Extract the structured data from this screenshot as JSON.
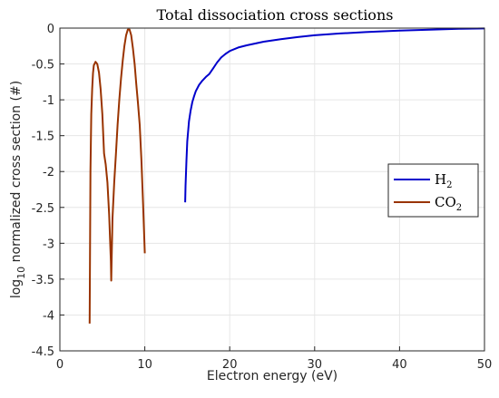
{
  "chart_data": {
    "type": "line",
    "title": "Total dissociation cross sections",
    "xlabel": "Electron energy (eV)",
    "ylabel_main": "log",
    "ylabel_sub": "10",
    "ylabel_rest": " normalized cross section (#)",
    "xlim": [
      0,
      50
    ],
    "ylim": [
      -4.5,
      0
    ],
    "xticks": [
      0,
      10,
      20,
      30,
      40,
      50
    ],
    "xtick_labels": [
      "0",
      "10",
      "20",
      "30",
      "40",
      "50"
    ],
    "yticks": [
      0,
      -0.5,
      -1,
      -1.5,
      -2,
      -2.5,
      -3,
      -3.5,
      -4,
      -4.5
    ],
    "ytick_labels": [
      "0",
      "-0.5",
      "-1",
      "-1.5",
      "-2",
      "-2.5",
      "-3",
      "-3.5",
      "-4",
      "-4.5"
    ],
    "grid": true,
    "legend_position": "right",
    "series": [
      {
        "name_main": "H",
        "name_sub": "2",
        "color": "#0000cc",
        "x": [
          14.75,
          14.8,
          14.9,
          15.0,
          15.2,
          15.4,
          15.6,
          15.8,
          16.0,
          16.4,
          16.8,
          17.2,
          17.6,
          18.0,
          18.5,
          19.0,
          19.5,
          20.0,
          21.0,
          22.0,
          24.0,
          26.0,
          28.0,
          30.0,
          33.0,
          36.0,
          40.0,
          44.0,
          47.0,
          50.0
        ],
        "y": [
          -2.43,
          -2.2,
          -1.85,
          -1.58,
          -1.3,
          -1.15,
          -1.03,
          -0.95,
          -0.88,
          -0.79,
          -0.73,
          -0.68,
          -0.64,
          -0.57,
          -0.48,
          -0.41,
          -0.36,
          -0.32,
          -0.27,
          -0.24,
          -0.19,
          -0.155,
          -0.125,
          -0.1,
          -0.075,
          -0.055,
          -0.035,
          -0.02,
          -0.01,
          -0.005
        ]
      },
      {
        "name_main": "CO",
        "name_sub": "2",
        "color": "#993300",
        "x": [
          3.5,
          3.55,
          3.6,
          3.7,
          3.8,
          3.9,
          4.0,
          4.2,
          4.4,
          4.6,
          4.8,
          5.0,
          5.2,
          5.4,
          5.6,
          5.8,
          6.0,
          6.05,
          6.1,
          6.2,
          6.4,
          6.6,
          6.8,
          7.0,
          7.2,
          7.4,
          7.6,
          7.8,
          8.0,
          8.2,
          8.4,
          8.6,
          8.8,
          9.0,
          9.2,
          9.4,
          9.6,
          9.8,
          10.0
        ],
        "y": [
          -4.12,
          -3.2,
          -2.0,
          -1.2,
          -0.85,
          -0.63,
          -0.52,
          -0.47,
          -0.5,
          -0.62,
          -0.85,
          -1.2,
          -1.75,
          -1.9,
          -2.15,
          -2.6,
          -3.25,
          -3.52,
          -3.2,
          -2.65,
          -2.15,
          -1.75,
          -1.35,
          -1.0,
          -0.7,
          -0.45,
          -0.25,
          -0.1,
          -0.02,
          -0.02,
          -0.1,
          -0.28,
          -0.5,
          -0.78,
          -1.05,
          -1.35,
          -1.85,
          -2.45,
          -3.14
        ]
      }
    ]
  }
}
